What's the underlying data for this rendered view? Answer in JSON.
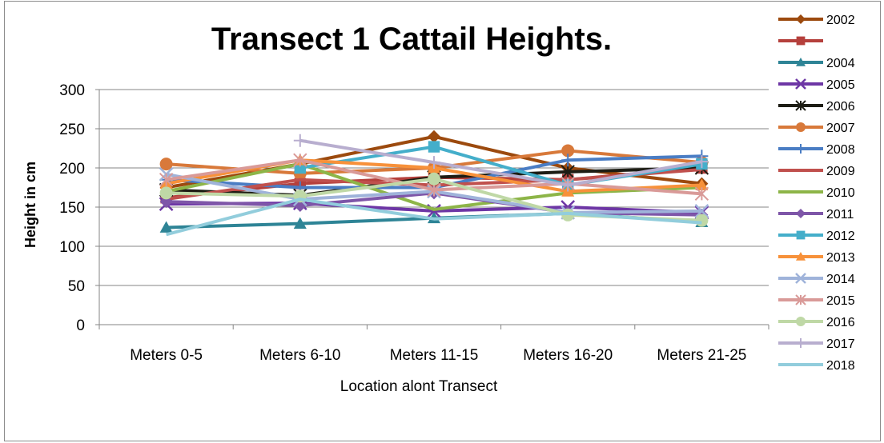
{
  "chart_data": {
    "type": "line",
    "title": "Transect 1 Cattail Heights.",
    "xlabel": "Location alont Transect",
    "ylabel": "Height in cm",
    "categories": [
      "Meters 0-5",
      "Meters 6-10",
      "Meters 11-15",
      "Meters 16-20",
      "Meters 21-25"
    ],
    "ylim": [
      0,
      300
    ],
    "yticks": [
      0,
      50,
      100,
      150,
      200,
      250,
      300
    ],
    "grid": true,
    "legend_position": "right",
    "series": [
      {
        "name": "2002",
        "color": "#9C4A0E",
        "marker": "diamond",
        "values": [
          175,
          205,
          240,
          200,
          180
        ]
      },
      {
        "name": "",
        "color": "#B5403C",
        "marker": "square",
        "values": [
          162,
          180,
          188,
          185,
          200
        ]
      },
      {
        "name": "2004",
        "color": "#2E8496",
        "marker": "triangle",
        "values": [
          124,
          129,
          136,
          142,
          131
        ]
      },
      {
        "name": "2005",
        "color": "#6D36A5",
        "marker": "x",
        "values": [
          154,
          155,
          145,
          150,
          143
        ]
      },
      {
        "name": "2006",
        "color": "#1D1D14",
        "marker": "star",
        "values": [
          172,
          165,
          188,
          195,
          200
        ]
      },
      {
        "name": "2007",
        "color": "#D8793A",
        "marker": "circle",
        "values": [
          205,
          193,
          200,
          222,
          207
        ]
      },
      {
        "name": "2008",
        "color": "#4A7DC4",
        "marker": "plus",
        "values": [
          185,
          175,
          175,
          210,
          215
        ]
      },
      {
        "name": "2009",
        "color": "#C0504D",
        "marker": "none",
        "values": [
          160,
          185,
          178,
          185,
          198
        ]
      },
      {
        "name": "2010",
        "color": "#8DB548",
        "marker": "none",
        "values": [
          170,
          205,
          147,
          168,
          175
        ]
      },
      {
        "name": "2011",
        "color": "#7E56A8",
        "marker": "diamond",
        "values": [
          157,
          152,
          168,
          143,
          140
        ]
      },
      {
        "name": "2012",
        "color": "#44AECA",
        "marker": "square",
        "values": [
          null,
          200,
          227,
          178,
          205
        ]
      },
      {
        "name": "2013",
        "color": "#F7913A",
        "marker": "triangle",
        "values": [
          180,
          210,
          200,
          170,
          178
        ]
      },
      {
        "name": "2014",
        "color": "#9FB3DA",
        "marker": "x",
        "values": [
          192,
          160,
          170,
          143,
          145
        ]
      },
      {
        "name": "2015",
        "color": "#D99A98",
        "marker": "star",
        "values": [
          185,
          210,
          172,
          180,
          167
        ]
      },
      {
        "name": "2016",
        "color": "#BFD8A6",
        "marker": "circle",
        "values": [
          168,
          164,
          186,
          140,
          133
        ]
      },
      {
        "name": "2017",
        "color": "#B8AECF",
        "marker": "plus",
        "values": [
          null,
          235,
          207,
          178,
          208
        ]
      },
      {
        "name": "2018",
        "color": "#92CDDC",
        "marker": "none",
        "values": [
          115,
          160,
          135,
          142,
          130
        ]
      }
    ]
  }
}
